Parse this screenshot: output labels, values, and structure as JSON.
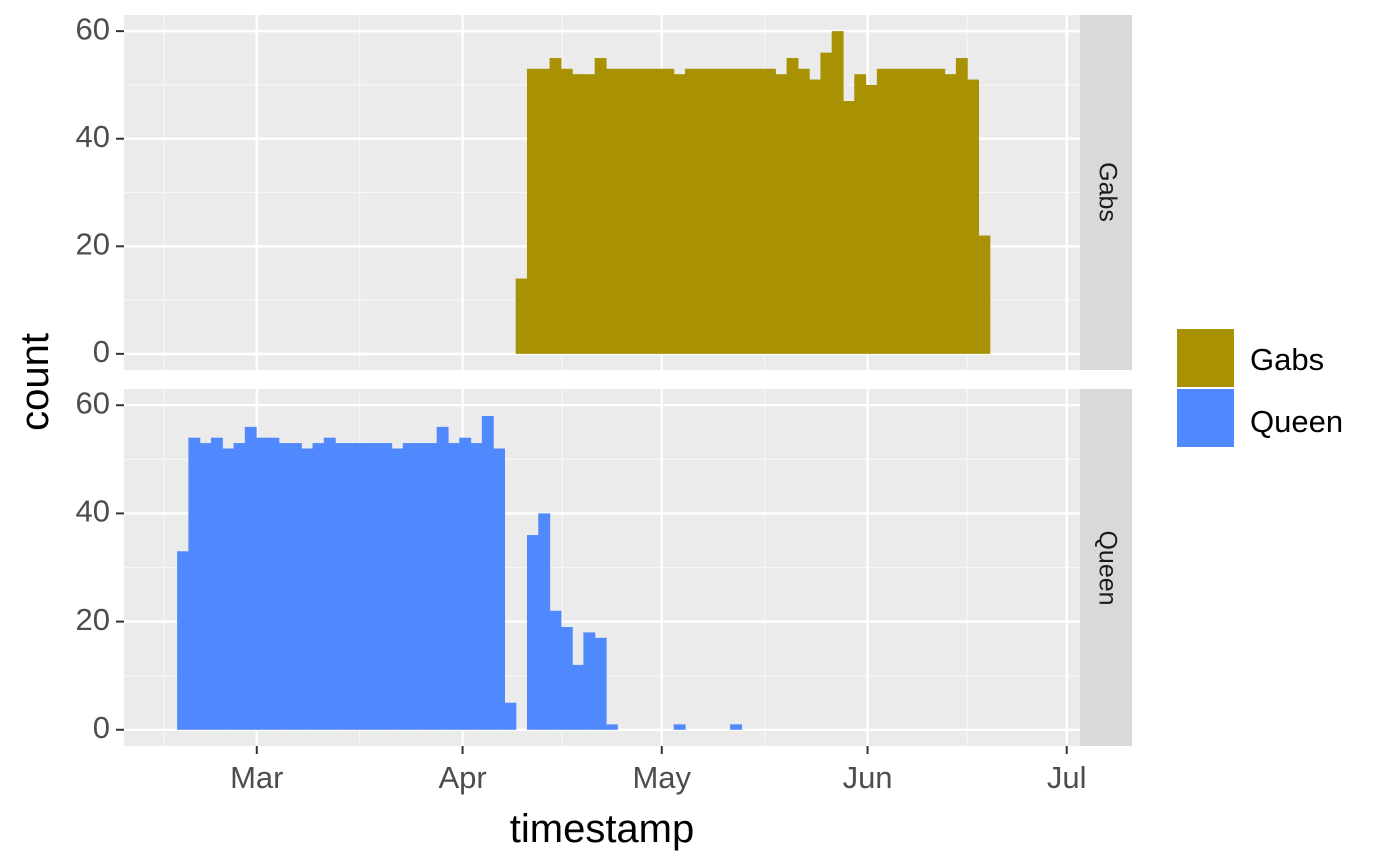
{
  "chart_data": {
    "type": "bar",
    "subtype": "faceted-histogram",
    "xlabel": "timestamp",
    "ylabel": "count",
    "x_ticks": [
      "Mar",
      "Apr",
      "May",
      "Jun",
      "Jul"
    ],
    "x_range": [
      "2021-02-09",
      "2021-07-03"
    ],
    "bin_width_days": 1.7,
    "y_ticks": [
      0,
      20,
      40,
      60
    ],
    "ylim": [
      -3,
      63
    ],
    "grid": true,
    "legend": {
      "title": "",
      "placement": "right",
      "entries": [
        {
          "label": "Gabs",
          "color": "#A89204"
        },
        {
          "label": "Queen",
          "color": "#5088FE"
        }
      ]
    },
    "facets": [
      {
        "strip_label": "Gabs",
        "series_name": "Gabs",
        "color": "#A89204",
        "bin_start": "2021-04-09",
        "values": [
          14,
          53,
          53,
          55,
          53,
          52,
          52,
          55,
          53,
          53,
          53,
          53,
          53,
          53,
          52,
          53,
          53,
          53,
          53,
          53,
          53,
          53,
          53,
          52,
          55,
          53,
          51,
          56,
          60,
          47,
          52,
          50,
          53,
          53,
          53,
          53,
          53,
          53,
          52,
          55,
          51,
          22
        ]
      },
      {
        "strip_label": "Queen",
        "series_name": "Queen",
        "color": "#5088FE",
        "bin_start": "2021-02-17",
        "values": [
          33,
          54,
          53,
          54,
          52,
          53,
          56,
          54,
          54,
          53,
          53,
          52,
          53,
          54,
          53,
          53,
          53,
          53,
          53,
          52,
          53,
          53,
          53,
          56,
          53,
          54,
          53,
          58,
          52,
          5,
          0,
          36,
          40,
          22,
          19,
          12,
          18,
          17,
          1,
          0,
          0,
          0,
          0,
          0,
          1,
          0,
          0,
          0,
          0,
          1
        ]
      }
    ]
  }
}
